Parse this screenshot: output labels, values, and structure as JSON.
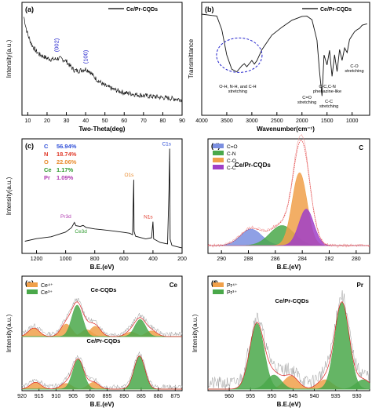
{
  "figure": {
    "panels": [
      {
        "id": "a",
        "label": "(a)",
        "legend": "Ce/Pr-CQDs",
        "xlabel": "Two-Theta(deg)",
        "ylabel": "Intensity(a.u.)"
      },
      {
        "id": "b",
        "label": "(b)",
        "legend": "Ce/Pr-CQDs",
        "xlabel": "Wavenumber(cm⁻¹)",
        "ylabel": "Transmittance"
      },
      {
        "id": "c",
        "label": "(c)",
        "xlabel": "B.E.(eV)",
        "ylabel": "Intensity(a.u.)"
      },
      {
        "id": "d",
        "label": "(d)",
        "xlabel": "B.E.(eV)",
        "ylabel": "",
        "sample": "Ce/Pr-CQDs",
        "element": "C"
      },
      {
        "id": "e",
        "label": "(e)",
        "xlabel": "B.E.(eV)",
        "ylabel": "Intensity(a.u.)",
        "element": "Ce"
      },
      {
        "id": "f",
        "label": "(f)",
        "xlabel": "B.E.(eV)",
        "ylabel": "Intensity(a.u.)",
        "element": "Pr"
      }
    ]
  },
  "chart_data": [
    {
      "type": "line",
      "panel": "a",
      "title": "",
      "xlabel": "Two-Theta(deg)",
      "ylabel": "Intensity(a.u.)",
      "xlim": [
        7,
        90
      ],
      "xticks": [
        10,
        20,
        30,
        40,
        50,
        60,
        70,
        80,
        90
      ],
      "series": [
        {
          "name": "Ce/Pr-CQDs",
          "color": "#111111",
          "x": [
            8,
            9,
            10,
            12,
            14,
            16,
            18,
            20,
            22,
            24,
            26,
            28,
            30,
            32,
            34,
            36,
            38,
            40,
            42,
            44,
            46,
            50,
            55,
            60,
            70,
            80,
            90
          ],
          "y": [
            100,
            90,
            82,
            72,
            66,
            62,
            60,
            58,
            57,
            57,
            58,
            57,
            55,
            50,
            46,
            45,
            46,
            47,
            45,
            40,
            36,
            30,
            26,
            23,
            20,
            18,
            16
          ]
        }
      ],
      "annotations": [
        {
          "text": "(002)",
          "x": 26
        },
        {
          "text": "(100)",
          "x": 41
        }
      ],
      "annotation_color": "#2222cc"
    },
    {
      "type": "line",
      "panel": "b",
      "title": "",
      "xlabel": "Wavenumber(cm⁻¹)",
      "ylabel": "Transmittance",
      "xlim": [
        4000,
        650
      ],
      "xticks": [
        4000,
        3500,
        3000,
        2500,
        2000,
        1500,
        1000
      ],
      "series": [
        {
          "name": "Ce/Pr-CQDs",
          "color": "#111111",
          "x": [
            4000,
            3800,
            3700,
            3600,
            3500,
            3400,
            3300,
            3200,
            3150,
            3100,
            3000,
            2950,
            2900,
            2800,
            2600,
            2400,
            2200,
            2000,
            1900,
            1800,
            1700,
            1650,
            1600,
            1560,
            1500,
            1450,
            1400,
            1350,
            1300,
            1250,
            1200,
            1150,
            1100,
            1050,
            1000,
            950,
            900,
            850,
            800,
            700
          ],
          "y": [
            95,
            94,
            92,
            80,
            55,
            42,
            38,
            45,
            47,
            44,
            49,
            46,
            50,
            60,
            74,
            83,
            88,
            92,
            92,
            90,
            70,
            40,
            15,
            55,
            45,
            60,
            35,
            55,
            40,
            60,
            50,
            62,
            58,
            70,
            75,
            78,
            80,
            82,
            84,
            86
          ]
        }
      ],
      "annotations": [
        {
          "text": "O-H, N-H, and C-H stretching"
        },
        {
          "text": "C=O stretching"
        },
        {
          "text": "C-C stretching"
        },
        {
          "text": "C-C,C-N phenazine-like"
        },
        {
          "text": "C-O stretching"
        }
      ]
    },
    {
      "type": "line",
      "panel": "c",
      "title": "",
      "xlabel": "B.E.(eV)",
      "ylabel": "Intensity(a.u.)",
      "xlim": [
        1300,
        200
      ],
      "xticks": [
        1200,
        1000,
        800,
        600,
        400,
        200
      ],
      "composition": [
        {
          "element": "C",
          "percent": "56.94%",
          "color": "#2f4fd8"
        },
        {
          "element": "N",
          "percent": "18.74%",
          "color": "#e03a2a"
        },
        {
          "element": "O",
          "percent": "22.06%",
          "color": "#e8892a"
        },
        {
          "element": "Ce",
          "percent": "1.17%",
          "color": "#2e9a2e"
        },
        {
          "element": "Pr",
          "percent": "1.09%",
          "color": "#b03ab0"
        }
      ],
      "peaks": [
        {
          "label": "C1s",
          "x": 285,
          "color": "#2f4fd8"
        },
        {
          "label": "O1s",
          "x": 532,
          "color": "#e8892a"
        },
        {
          "label": "N1s",
          "x": 400,
          "color": "#e03a2a"
        },
        {
          "label": "Ce3d",
          "x": 884,
          "color": "#2e9a2e"
        },
        {
          "label": "Pr3d",
          "x": 934,
          "color": "#b03ab0"
        }
      ],
      "series": [
        {
          "name": "survey",
          "color": "#111111",
          "x": [
            1280,
            1200,
            1100,
            1000,
            960,
            940,
            930,
            900,
            880,
            860,
            800,
            700,
            600,
            560,
            540,
            532,
            530,
            520,
            450,
            410,
            400,
            395,
            350,
            300,
            290,
            285,
            282,
            270,
            250,
            200
          ],
          "y": [
            10,
            12,
            15,
            20,
            24,
            28,
            26,
            25,
            25,
            24,
            22,
            20,
            18,
            18,
            17,
            70,
            20,
            15,
            13,
            13,
            30,
            12,
            10,
            8,
            60,
            100,
            12,
            6,
            5,
            4
          ]
        }
      ]
    },
    {
      "type": "area",
      "panel": "d",
      "title": "",
      "xlabel": "B.E.(eV)",
      "ylabel": "",
      "xlim": [
        291,
        279
      ],
      "xticks": [
        290,
        288,
        286,
        284,
        282,
        280
      ],
      "series": [
        {
          "name": "C=O",
          "color": "#7b8fe0",
          "center": 287.8,
          "height": 18,
          "width": 0.8
        },
        {
          "name": "C-N",
          "color": "#4aa84a",
          "center": 285.5,
          "height": 22,
          "width": 0.9
        },
        {
          "name": "C-O",
          "color": "#f0a04a",
          "center": 284.2,
          "height": 80,
          "width": 0.55
        },
        {
          "name": "C-C",
          "color": "#a040c8",
          "center": 283.7,
          "height": 40,
          "width": 0.55
        }
      ]
    },
    {
      "type": "area",
      "panel": "e",
      "title": "",
      "xlabel": "B.E.(eV)",
      "ylabel": "Intensity(a.u.)",
      "xlim": [
        920,
        873
      ],
      "xticks": [
        920,
        915,
        910,
        905,
        900,
        895,
        890,
        885,
        880,
        875
      ],
      "legend": [
        "Ce⁴⁺",
        "Ce³⁺"
      ],
      "colors": {
        "Ce4": "#f0a04a",
        "Ce3": "#4aa84a"
      },
      "subplots": [
        {
          "sample": "Ce-CQDs",
          "Ce4": [
            {
              "center": 916.5,
              "height": 15
            },
            {
              "center": 907,
              "height": 22
            },
            {
              "center": 901,
              "height": 12
            },
            {
              "center": 898.5,
              "height": 18
            },
            {
              "center": 888,
              "height": 8
            },
            {
              "center": 882,
              "height": 10
            }
          ],
          "Ce3": [
            {
              "center": 903.8,
              "height": 55
            },
            {
              "center": 885.3,
              "height": 30
            }
          ]
        },
        {
          "sample": "Ce/Pr-CQDs",
          "Ce4": [
            {
              "center": 916,
              "height": 12
            },
            {
              "center": 907,
              "height": 10
            },
            {
              "center": 899,
              "height": 12
            }
          ],
          "Ce3": [
            {
              "center": 903.5,
              "height": 52
            },
            {
              "center": 885.5,
              "height": 58
            }
          ]
        }
      ]
    },
    {
      "type": "area",
      "panel": "f",
      "title": "",
      "xlabel": "B.E.(eV)",
      "ylabel": "Intensity(a.u.)",
      "xlim": [
        965,
        927
      ],
      "xticks": [
        960,
        955,
        950,
        945,
        940,
        935,
        930
      ],
      "legend": [
        "Pr⁴⁺",
        "Pr³⁺"
      ],
      "colors": {
        "Pr4": "#f0a04a",
        "Pr3": "#4aa84a"
      },
      "sample": "Ce/Pr-CQDs",
      "Pr4": [
        {
          "center": 945.5,
          "height": 14
        },
        {
          "center": 937.5,
          "height": 10
        }
      ],
      "Pr3": [
        {
          "center": 953.5,
          "height": 70
        },
        {
          "center": 949.5,
          "height": 15
        },
        {
          "center": 933.5,
          "height": 92
        },
        {
          "center": 928.5,
          "height": 10
        }
      ]
    }
  ]
}
